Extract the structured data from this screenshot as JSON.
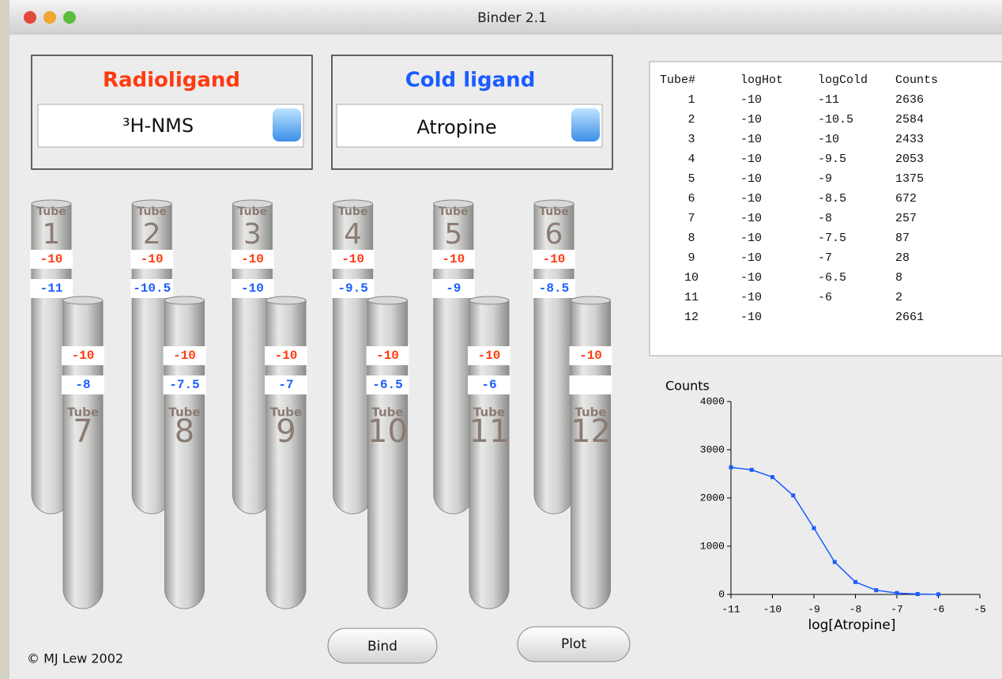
{
  "window": {
    "title": "Binder 2.1"
  },
  "radioligand": {
    "title": "Radioligand",
    "selected": "³H-NMS"
  },
  "cold_ligand": {
    "title": "Cold ligand",
    "selected": "Atropine"
  },
  "tube_label": "Tube",
  "tubes": [
    {
      "number": "1",
      "hot": "-10",
      "cold": "-11"
    },
    {
      "number": "2",
      "hot": "-10",
      "cold": "-10.5"
    },
    {
      "number": "3",
      "hot": "-10",
      "cold": "-10"
    },
    {
      "number": "4",
      "hot": "-10",
      "cold": "-9.5"
    },
    {
      "number": "5",
      "hot": "-10",
      "cold": "-9"
    },
    {
      "number": "6",
      "hot": "-10",
      "cold": "-8.5"
    },
    {
      "number": "7",
      "hot": "-10",
      "cold": "-8"
    },
    {
      "number": "8",
      "hot": "-10",
      "cold": "-7.5"
    },
    {
      "number": "9",
      "hot": "-10",
      "cold": "-7"
    },
    {
      "number": "10",
      "hot": "-10",
      "cold": "-6.5"
    },
    {
      "number": "11",
      "hot": "-10",
      "cold": "-6"
    },
    {
      "number": "12",
      "hot": "-10",
      "cold": null
    }
  ],
  "table": {
    "header": [
      "Tube#",
      "logHot",
      "logCold",
      "Counts"
    ],
    "rows": [
      [
        "1",
        "-10",
        "-11",
        "2636"
      ],
      [
        "2",
        "-10",
        "-10.5",
        "2584"
      ],
      [
        "3",
        "-10",
        "-10",
        "2433"
      ],
      [
        "4",
        "-10",
        "-9.5",
        "2053"
      ],
      [
        "5",
        "-10",
        "-9",
        "1375"
      ],
      [
        "6",
        "-10",
        "-8.5",
        "672"
      ],
      [
        "7",
        "-10",
        "-8",
        "257"
      ],
      [
        "8",
        "-10",
        "-7.5",
        "87"
      ],
      [
        "9",
        "-10",
        "-7",
        "28"
      ],
      [
        "10",
        "-10",
        "-6.5",
        "8"
      ],
      [
        "11",
        "-10",
        "-6",
        "2"
      ],
      [
        "12",
        "-10",
        null,
        "2661"
      ]
    ]
  },
  "chart_data": {
    "type": "line",
    "y_label": "Counts",
    "x_label": "log[Atropine]",
    "x": [
      -11,
      -10.5,
      -10,
      -9.5,
      -9,
      -8.5,
      -8,
      -7.5,
      -7,
      -6.5,
      -6
    ],
    "values": [
      2636,
      2584,
      2433,
      2053,
      1375,
      672,
      257,
      87,
      28,
      8,
      2
    ],
    "color": "#1a5cff",
    "xlim": [
      -11,
      -5
    ],
    "xticks": [
      -11,
      -10,
      -9,
      -8,
      -7,
      -6,
      -5
    ],
    "ylim": [
      0,
      4000
    ],
    "yticks": [
      0,
      1000,
      2000,
      3000,
      4000
    ]
  },
  "buttons": {
    "bind": "Bind",
    "plot": "Plot"
  },
  "footer": {
    "copyright": "© MJ Lew 2002"
  }
}
